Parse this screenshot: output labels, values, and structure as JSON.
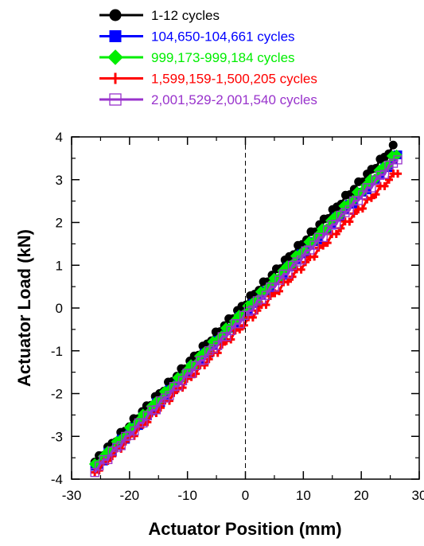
{
  "chart_data": {
    "type": "scatter",
    "title": "",
    "xlabel": "Actuator Position (mm)",
    "ylabel": "Actuator Load (kN)",
    "xlim": [
      -30,
      30
    ],
    "ylim": [
      -4,
      4
    ],
    "x_ticks": [
      -30,
      -20,
      -10,
      0,
      10,
      20,
      30
    ],
    "y_ticks": [
      -4,
      -3,
      -2,
      -1,
      0,
      1,
      2,
      3,
      4
    ],
    "reference_line": {
      "x": 0,
      "style": "dashed"
    },
    "grid": false,
    "legend_position": "top",
    "series": [
      {
        "name": "1-12 cycles",
        "color": "#000000",
        "marker": "filled-circle",
        "x_range": [
          -26,
          25.5
        ],
        "y_range": [
          -3.6,
          3.75
        ]
      },
      {
        "name": "104,650-104,661 cycles",
        "color": "#0000ff",
        "marker": "filled-square",
        "x_range": [
          -26,
          26.3
        ],
        "y_range": [
          -3.75,
          3.55
        ]
      },
      {
        "name": "999,173-999,184 cycles",
        "color": "#00ee00",
        "marker": "filled-diamond",
        "x_range": [
          -26,
          26.1
        ],
        "y_range": [
          -3.7,
          3.6
        ]
      },
      {
        "name": "1,599,159-1,500,205 cycles",
        "color": "#ff0000",
        "marker": "plus",
        "x_range": [
          -26,
          26.3
        ],
        "y_range": [
          -3.85,
          3.2
        ]
      },
      {
        "name": "2,001,529-2,001,540 cycles",
        "color": "#9933cc",
        "marker": "open-square",
        "x_range": [
          -26,
          26.3
        ],
        "y_range": [
          -3.8,
          3.5
        ]
      }
    ]
  }
}
